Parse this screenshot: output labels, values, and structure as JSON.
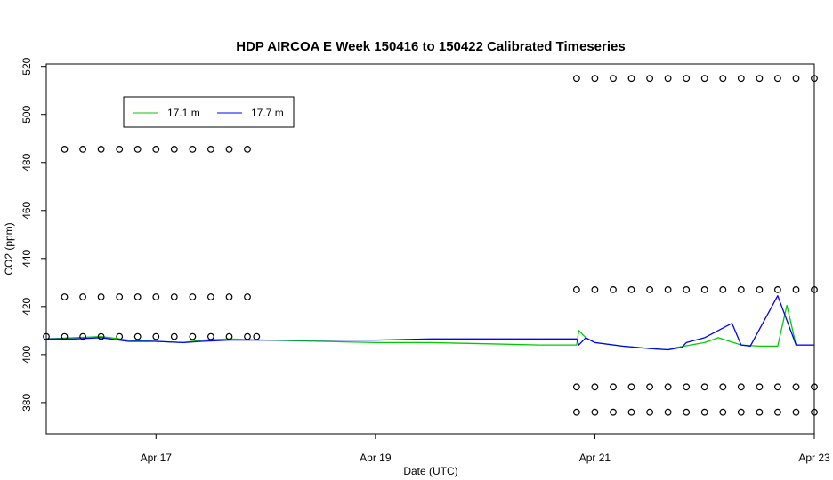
{
  "chart_data": {
    "type": "line",
    "title": "HDP AIRCOA E  Week 150416 to 150422  Calibrated Timeseries",
    "xlabel": "Date (UTC)",
    "ylabel": "CO2 (ppm)",
    "x_unit": "date (UTC)",
    "xlim": [
      "2015-04-16T00:00",
      "2015-04-23T00:00"
    ],
    "ylim": [
      367,
      521
    ],
    "x_ticks": [
      {
        "value": "2015-04-17T00:00",
        "label": "Apr 17"
      },
      {
        "value": "2015-04-19T00:00",
        "label": "Apr 19"
      },
      {
        "value": "2015-04-21T00:00",
        "label": "Apr 21"
      },
      {
        "value": "2015-04-23T00:00",
        "label": "Apr 23"
      }
    ],
    "y_ticks": [
      380,
      400,
      420,
      440,
      460,
      480,
      500,
      520
    ],
    "grid": false,
    "legend_position": "top-left",
    "series": [
      {
        "name": "17.1 m",
        "color": "#00cc00",
        "x": [
          "2015-04-16T00:00",
          "2015-04-16T06:00",
          "2015-04-16T12:00",
          "2015-04-16T18:00",
          "2015-04-17T00:00",
          "2015-04-17T06:00",
          "2015-04-17T10:00",
          "2015-04-17T16:00",
          "2015-04-18T00:00",
          "2015-04-18T12:00",
          "2015-04-19T00:00",
          "2015-04-19T12:00",
          "2015-04-20T00:00",
          "2015-04-20T12:00",
          "2015-04-20T20:00",
          "2015-04-20T20:30",
          "2015-04-20T22:00",
          "2015-04-21T00:00",
          "2015-04-21T06:00",
          "2015-04-21T12:00",
          "2015-04-21T16:00",
          "2015-04-21T18:00",
          "2015-04-22T00:00",
          "2015-04-22T03:00",
          "2015-04-22T08:00",
          "2015-04-22T12:00",
          "2015-04-22T16:00",
          "2015-04-22T18:00",
          "2015-04-22T20:00",
          "2015-04-23T00:00"
        ],
        "y": [
          406.5,
          407,
          407.5,
          406,
          405.5,
          405,
          406,
          406.5,
          406,
          405.5,
          405,
          405,
          404.5,
          404,
          404,
          410,
          407,
          405,
          403.5,
          402.5,
          402,
          403,
          405,
          407,
          404,
          403.5,
          403.5,
          420.5,
          404,
          404
        ]
      },
      {
        "name": "17.7 m",
        "color": "#0000ff",
        "x": [
          "2015-04-16T00:00",
          "2015-04-16T06:00",
          "2015-04-16T12:00",
          "2015-04-16T18:00",
          "2015-04-17T00:00",
          "2015-04-17T06:00",
          "2015-04-17T10:00",
          "2015-04-17T16:00",
          "2015-04-18T00:00",
          "2015-04-18T12:00",
          "2015-04-19T00:00",
          "2015-04-19T12:00",
          "2015-04-20T00:00",
          "2015-04-20T12:00",
          "2015-04-20T20:00",
          "2015-04-20T20:30",
          "2015-04-20T22:00",
          "2015-04-21T00:00",
          "2015-04-21T06:00",
          "2015-04-21T12:00",
          "2015-04-21T16:00",
          "2015-04-21T19:00",
          "2015-04-21T20:00",
          "2015-04-22T00:00",
          "2015-04-22T06:00",
          "2015-04-22T08:00",
          "2015-04-22T10:00",
          "2015-04-22T16:00",
          "2015-04-22T20:00",
          "2015-04-23T00:00"
        ],
        "y": [
          406.5,
          406.5,
          407,
          405.5,
          405.5,
          405,
          405.5,
          406,
          406,
          406,
          406,
          406.5,
          406.5,
          406.5,
          406.5,
          404,
          407,
          405,
          403.5,
          402.5,
          402,
          403,
          405,
          407,
          413,
          404,
          403.5,
          424.5,
          404,
          404
        ]
      },
      {
        "name": "",
        "type": "scatter",
        "marker": "circle",
        "color": "#000000",
        "x": [
          "2015-04-16T04:00",
          "2015-04-16T08:00",
          "2015-04-16T12:00",
          "2015-04-16T16:00",
          "2015-04-16T20:00",
          "2015-04-17T00:00",
          "2015-04-17T04:00",
          "2015-04-17T08:00",
          "2015-04-17T12:00",
          "2015-04-17T16:00",
          "2015-04-17T20:00",
          "2015-04-16T04:00",
          "2015-04-16T08:00",
          "2015-04-16T12:00",
          "2015-04-16T16:00",
          "2015-04-16T20:00",
          "2015-04-17T00:00",
          "2015-04-17T04:00",
          "2015-04-17T08:00",
          "2015-04-17T12:00",
          "2015-04-17T16:00",
          "2015-04-17T20:00",
          "2015-04-16T00:00",
          "2015-04-16T04:00",
          "2015-04-16T08:00",
          "2015-04-16T12:00",
          "2015-04-16T16:00",
          "2015-04-16T20:00",
          "2015-04-17T00:00",
          "2015-04-17T04:00",
          "2015-04-17T08:00",
          "2015-04-17T12:00",
          "2015-04-17T16:00",
          "2015-04-17T20:00",
          "2015-04-17T22:00",
          "2015-04-20T20:00",
          "2015-04-21T00:00",
          "2015-04-21T04:00",
          "2015-04-21T08:00",
          "2015-04-21T12:00",
          "2015-04-21T16:00",
          "2015-04-21T20:00",
          "2015-04-22T00:00",
          "2015-04-22T04:00",
          "2015-04-22T08:00",
          "2015-04-22T12:00",
          "2015-04-22T16:00",
          "2015-04-22T20:00",
          "2015-04-23T00:00",
          "2015-04-20T20:00",
          "2015-04-21T00:00",
          "2015-04-21T04:00",
          "2015-04-21T08:00",
          "2015-04-21T12:00",
          "2015-04-21T16:00",
          "2015-04-21T20:00",
          "2015-04-22T00:00",
          "2015-04-22T04:00",
          "2015-04-22T08:00",
          "2015-04-22T12:00",
          "2015-04-22T16:00",
          "2015-04-22T20:00",
          "2015-04-23T00:00",
          "2015-04-20T20:00",
          "2015-04-21T00:00",
          "2015-04-21T04:00",
          "2015-04-21T08:00",
          "2015-04-21T12:00",
          "2015-04-21T16:00",
          "2015-04-21T20:00",
          "2015-04-22T00:00",
          "2015-04-22T04:00",
          "2015-04-22T08:00",
          "2015-04-22T12:00",
          "2015-04-22T16:00",
          "2015-04-22T20:00",
          "2015-04-23T00:00",
          "2015-04-20T20:00",
          "2015-04-21T00:00",
          "2015-04-21T04:00",
          "2015-04-21T08:00",
          "2015-04-21T12:00",
          "2015-04-21T16:00",
          "2015-04-21T20:00",
          "2015-04-22T00:00",
          "2015-04-22T04:00",
          "2015-04-22T08:00",
          "2015-04-22T12:00",
          "2015-04-22T16:00",
          "2015-04-22T20:00",
          "2015-04-23T00:00"
        ],
        "y": [
          485.5,
          485.5,
          485.5,
          485.5,
          485.5,
          485.5,
          485.5,
          485.5,
          485.5,
          485.5,
          485.5,
          424,
          424,
          424,
          424,
          424,
          424,
          424,
          424,
          424,
          424,
          424,
          407.5,
          407.5,
          407.5,
          407.5,
          407.5,
          407.5,
          407.5,
          407.5,
          407.5,
          407.5,
          407.5,
          407.5,
          407.5,
          515,
          515,
          515,
          515,
          515,
          515,
          515,
          515,
          515,
          515,
          515,
          515,
          515,
          515,
          427,
          427,
          427,
          427,
          427,
          427,
          427,
          427,
          427,
          427,
          427,
          427,
          427,
          427,
          386.5,
          386.5,
          386.5,
          386.5,
          386.5,
          386.5,
          386.5,
          386.5,
          386.5,
          386.5,
          386.5,
          386.5,
          386.5,
          386.5,
          376,
          376,
          376,
          376,
          376,
          376,
          376,
          376,
          376,
          376,
          376,
          376,
          376,
          376
        ]
      }
    ]
  }
}
